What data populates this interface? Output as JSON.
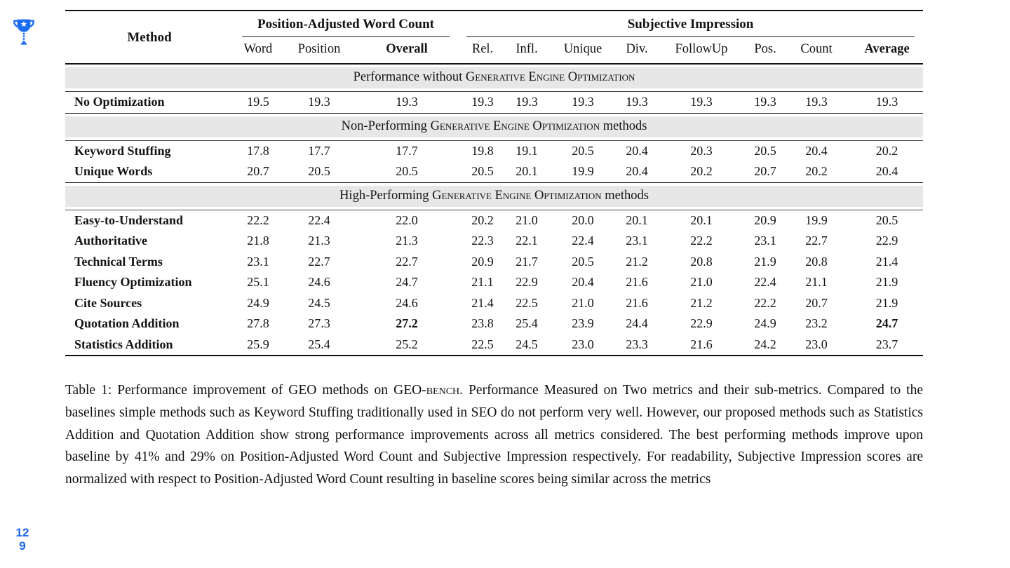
{
  "annotations": {
    "page_number_line1": "12",
    "page_number_line2": "9",
    "accent_blue": "#1b6ef3"
  },
  "table": {
    "header": {
      "method_label": "Method",
      "groups": [
        {
          "label": "Position-Adjusted Word Count",
          "colspan": 3
        },
        {
          "label": "Subjective Impression",
          "colspan": 8
        }
      ],
      "columns": [
        {
          "label": "Word",
          "bold": false
        },
        {
          "label": "Position",
          "bold": false
        },
        {
          "label": "Overall",
          "bold": true
        },
        {
          "label": "Rel.",
          "bold": false
        },
        {
          "label": "Infl.",
          "bold": false
        },
        {
          "label": "Unique",
          "bold": false
        },
        {
          "label": "Div.",
          "bold": false
        },
        {
          "label": "FollowUp",
          "bold": false
        },
        {
          "label": "Pos.",
          "bold": false
        },
        {
          "label": "Count",
          "bold": false
        },
        {
          "label": "Average",
          "bold": true
        }
      ]
    },
    "sections": [
      {
        "band": {
          "prefix": "Performance without ",
          "smallcaps": "Generative Engine Optimization",
          "suffix": ""
        },
        "rows": [
          {
            "method": "No Optimization",
            "values": [
              "19.5",
              "19.3",
              "19.3",
              "19.3",
              "19.3",
              "19.3",
              "19.3",
              "19.3",
              "19.3",
              "19.3",
              "19.3"
            ],
            "bold_indices": []
          }
        ]
      },
      {
        "band": {
          "prefix": "Non-Performing ",
          "smallcaps": "Generative Engine Optimization",
          "suffix": " methods"
        },
        "rows": [
          {
            "method": "Keyword Stuffing",
            "values": [
              "17.8",
              "17.7",
              "17.7",
              "19.8",
              "19.1",
              "20.5",
              "20.4",
              "20.3",
              "20.5",
              "20.4",
              "20.2"
            ],
            "bold_indices": []
          },
          {
            "method": "Unique Words",
            "values": [
              "20.7",
              "20.5",
              "20.5",
              "20.5",
              "20.1",
              "19.9",
              "20.4",
              "20.2",
              "20.7",
              "20.2",
              "20.4"
            ],
            "bold_indices": []
          }
        ]
      },
      {
        "band": {
          "prefix": "High-Performing ",
          "smallcaps": "Generative Engine Optimization",
          "suffix": " methods"
        },
        "rows": [
          {
            "method": "Easy-to-Understand",
            "values": [
              "22.2",
              "22.4",
              "22.0",
              "20.2",
              "21.0",
              "20.0",
              "20.1",
              "20.1",
              "20.9",
              "19.9",
              "20.5"
            ],
            "bold_indices": []
          },
          {
            "method": "Authoritative",
            "values": [
              "21.8",
              "21.3",
              "21.3",
              "22.3",
              "22.1",
              "22.4",
              "23.1",
              "22.2",
              "23.1",
              "22.7",
              "22.9"
            ],
            "bold_indices": []
          },
          {
            "method": "Technical Terms",
            "values": [
              "23.1",
              "22.7",
              "22.7",
              "20.9",
              "21.7",
              "20.5",
              "21.2",
              "20.8",
              "21.9",
              "20.8",
              "21.4"
            ],
            "bold_indices": []
          },
          {
            "method": "Fluency Optimization",
            "values": [
              "25.1",
              "24.6",
              "24.7",
              "21.1",
              "22.9",
              "20.4",
              "21.6",
              "21.0",
              "22.4",
              "21.1",
              "21.9"
            ],
            "bold_indices": []
          },
          {
            "method": "Cite Sources",
            "values": [
              "24.9",
              "24.5",
              "24.6",
              "21.4",
              "22.5",
              "21.0",
              "21.6",
              "21.2",
              "22.2",
              "20.7",
              "21.9"
            ],
            "bold_indices": []
          },
          {
            "method": "Quotation Addition",
            "values": [
              "27.8",
              "27.3",
              "27.2",
              "23.8",
              "25.4",
              "23.9",
              "24.4",
              "22.9",
              "24.9",
              "23.2",
              "24.7"
            ],
            "bold_indices": [
              2,
              10
            ]
          },
          {
            "method": "Statistics Addition",
            "values": [
              "25.9",
              "25.4",
              "25.2",
              "22.5",
              "24.5",
              "23.0",
              "23.3",
              "21.6",
              "24.2",
              "23.0",
              "23.7"
            ],
            "bold_indices": []
          }
        ]
      }
    ]
  },
  "caption": {
    "prefix": "Table 1:  Performance improvement of GEO methods on GEO-",
    "smallcaps": "bench",
    "rest": ". Performance Measured on Two metrics and their sub-metrics. Compared to the baselines simple methods such as Keyword Stuffing traditionally used in SEO do not perform very well. However, our proposed methods such as Statistics Addition and Quotation Addition show strong performance improvements across all metrics considered. The best performing methods improve upon baseline by 41% and 29% on Position-Adjusted Word Count and Subjective Impression respectively. For readability, Subjective Impression scores are normalized with respect to Position-Adjusted Word Count resulting in baseline scores being similar across the metrics"
  }
}
